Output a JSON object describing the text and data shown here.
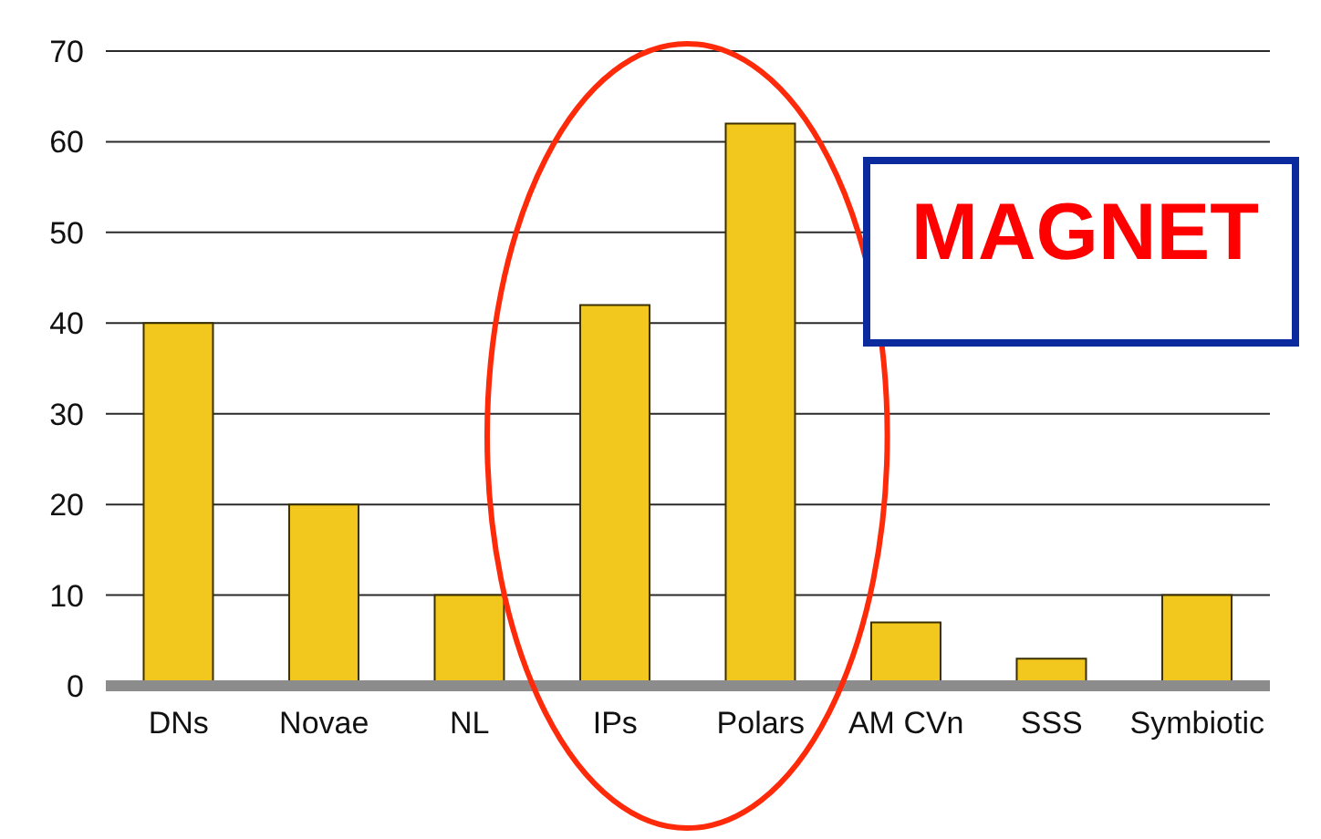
{
  "chart_data": {
    "type": "bar",
    "categories": [
      "DNs",
      "Novae",
      "NL",
      "IPs",
      "Polars",
      "AM CVn",
      "SSS",
      "Symbiotic"
    ],
    "values": [
      40,
      20,
      10,
      42,
      62,
      7,
      3,
      10
    ],
    "color": "#f2c81f",
    "ylim": [
      0,
      70
    ],
    "yticks": [
      0,
      10,
      20,
      30,
      40,
      50,
      60,
      70
    ],
    "grid": "y",
    "annotations": [
      "MAGNET"
    ]
  }
}
